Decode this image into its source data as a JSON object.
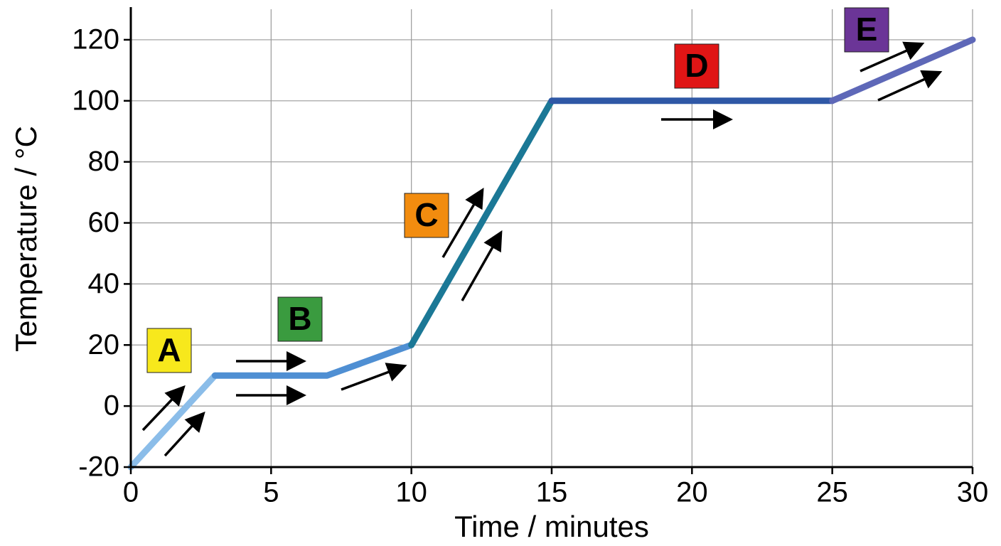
{
  "chart_data": {
    "type": "line",
    "x_label": "Time / minutes",
    "y_label": "Temperature / °C",
    "xlim": [
      0,
      30
    ],
    "ylim": [
      -20,
      130
    ],
    "xticks": [
      0,
      5,
      10,
      15,
      20,
      25,
      30
    ],
    "yticks": [
      -20,
      0,
      20,
      40,
      60,
      80,
      100,
      120
    ],
    "grid": true,
    "series": [
      {
        "name": "A",
        "color": "#8bbde9",
        "label_color": "#f7e81c",
        "x": [
          0,
          3
        ],
        "values": [
          -20,
          10
        ]
      },
      {
        "name": "B",
        "color": "#4f8fd3",
        "label_color": "#3a9b3f",
        "x": [
          3,
          7,
          10
        ],
        "values": [
          10,
          10,
          20
        ]
      },
      {
        "name": "C",
        "color": "#1b7896",
        "label_color": "#f28c0f",
        "x": [
          10,
          15
        ],
        "values": [
          20,
          100
        ]
      },
      {
        "name": "D",
        "color": "#2f58a6",
        "label_color": "#e01515",
        "x": [
          15,
          25
        ],
        "values": [
          100,
          100
        ]
      },
      {
        "name": "E",
        "color": "#5e68b8",
        "label_color": "#6b3597",
        "x": [
          25,
          30
        ],
        "values": [
          100,
          120
        ]
      }
    ]
  }
}
